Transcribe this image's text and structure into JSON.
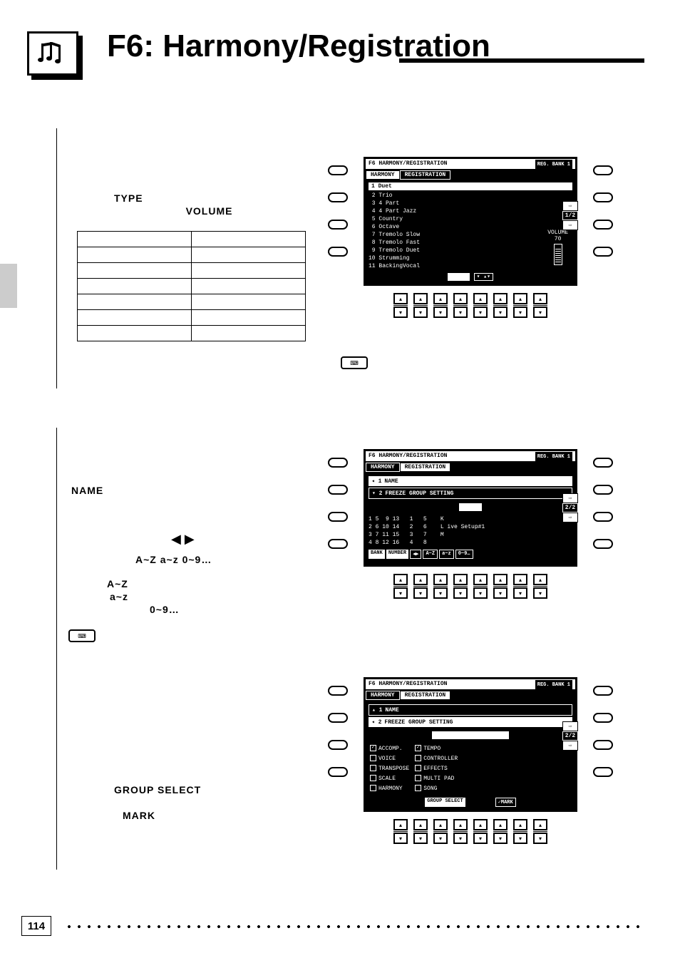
{
  "page_number": "114",
  "header": {
    "title": "F6: Harmony/Registration"
  },
  "section1": {
    "labels": {
      "type": "TYPE",
      "volume": "VOLUME"
    },
    "table_rows": 7
  },
  "screen1": {
    "title": "F6 HARMONY/REGISTRATION",
    "badge": "REG. BANK 1",
    "tabs": {
      "active": "HARMONY",
      "inactive": "REGISTRATION"
    },
    "items": [
      {
        "n": "1",
        "t": "Duet"
      },
      {
        "n": "2",
        "t": "Trio"
      },
      {
        "n": "3",
        "t": "4 Part"
      },
      {
        "n": "4",
        "t": "4 Part Jazz"
      },
      {
        "n": "5",
        "t": "Country"
      },
      {
        "n": "6",
        "t": "Octave"
      },
      {
        "n": "7",
        "t": "Tremolo Slow"
      },
      {
        "n": "8",
        "t": "Tremolo Fast"
      },
      {
        "n": "9",
        "t": "Tremolo Duet"
      },
      {
        "n": "10",
        "t": "Strumming"
      },
      {
        "n": "11",
        "t": "BackingVocal"
      }
    ],
    "volume_label": "VOLUME",
    "volume_value": "70",
    "footer": "TYPE",
    "page_ind": "1/2"
  },
  "section2": {
    "name_label": "NAME",
    "arrows": "◀ ▶",
    "line2": "A~Z a~z   0~9…",
    "line3a": "A~Z",
    "line3b": "a~z",
    "line3c": "0~9…"
  },
  "screen2": {
    "title": "F6 HARMONY/REGISTRATION",
    "badge": "REG. BANK 1",
    "tabs": {
      "inactive": "HARMONY",
      "active": "REGISTRATION"
    },
    "row1": "NAME",
    "row2": "FREEZE GROUP SETTING",
    "center": "NAME",
    "bank_grid": "1 5  9 13   1   5    K\n2 6 10 14   2   6    L ive Setup#1\n3 7 11 15   3   7    M\n4 8 12 16   4   8",
    "foot": {
      "a": "BANK",
      "b": "NUMBER",
      "c": "◀▶",
      "d": "A~Z",
      "e": "a~z",
      "f": "0~9…"
    },
    "page_ind": "2/2"
  },
  "section3": {
    "group_select": "GROUP SELECT",
    "mark": "MARK"
  },
  "screen3": {
    "title": "F6 HARMONY/REGISTRATION",
    "badge": "REG. BANK 1",
    "tabs": {
      "inactive": "HARMONY",
      "active": "REGISTRATION"
    },
    "row1": "NAME",
    "row2": "FREEZE GROUP SETTING",
    "center": "FREEZE GROUP SETTING",
    "groups_left": [
      {
        "c": true,
        "t": "ACCOMP."
      },
      {
        "c": false,
        "t": "VOICE"
      },
      {
        "c": false,
        "t": "TRANSPOSE"
      },
      {
        "c": false,
        "t": "SCALE"
      },
      {
        "c": false,
        "t": "HARMONY"
      }
    ],
    "groups_right": [
      {
        "c": true,
        "t": "TEMPO"
      },
      {
        "c": false,
        "t": "CONTROLLER"
      },
      {
        "c": false,
        "t": "EFFECTS"
      },
      {
        "c": false,
        "t": "MULTI PAD"
      },
      {
        "c": false,
        "t": "SONG"
      }
    ],
    "foot": {
      "a": "GROUP SELECT",
      "b": "✓MARK"
    },
    "page_ind": "2/2"
  }
}
